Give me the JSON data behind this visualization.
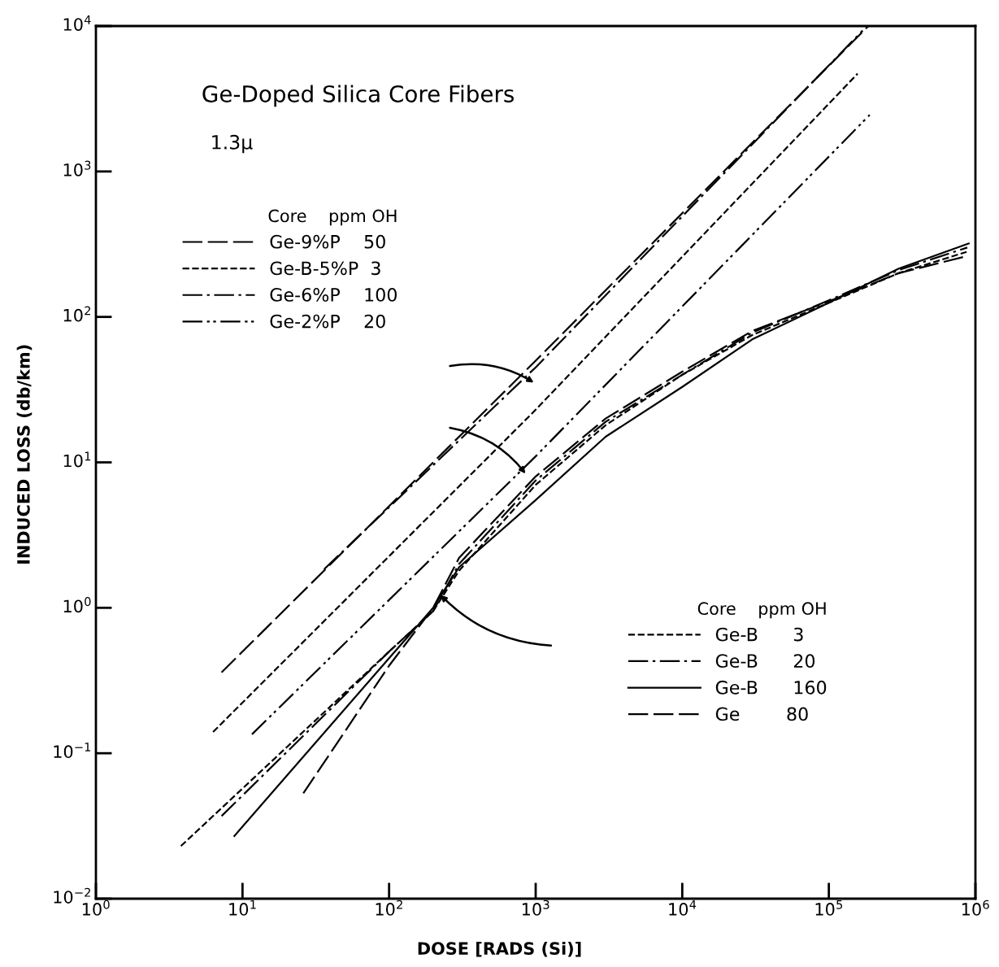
{
  "chart_data": {
    "type": "line",
    "title": "Ge-Doped Silica Core Fibers",
    "subtitle": "1.3μ",
    "xlabel": "DOSE [RADS (Si)]",
    "ylabel": "INDUCED LOSS (db/km)",
    "log": "xy",
    "grid": false,
    "legend": "left",
    "legend_title": "Core    ppm OH",
    "xlim": [
      1,
      1000000
    ],
    "ylim": [
      0.01,
      10000
    ],
    "xticks": [
      {
        "value": 1,
        "label": "10$^{0}$"
      },
      {
        "value": 10,
        "label": "10$^{1}$"
      },
      {
        "value": 100,
        "label": "10$^{2}$"
      },
      {
        "value": 1000,
        "label": "10$^{3}$"
      },
      {
        "value": 10000,
        "label": "10$^{4}$"
      },
      {
        "value": 100000,
        "label": "10$^{5}$"
      },
      {
        "value": 1000000,
        "label": "10$^{6}$"
      }
    ],
    "yticks": [
      {
        "value": 0.01,
        "label": "10$^{−2}$"
      },
      {
        "value": 0.1,
        "label": "10$^{−1}$"
      },
      {
        "value": 1,
        "label": "10$^{0}$"
      },
      {
        "value": 10,
        "label": "10$^{1}$"
      },
      {
        "value": 100,
        "label": "10$^{2}$"
      },
      {
        "value": 1000,
        "label": "10$^{3}$"
      },
      {
        "value": 10000,
        "label": "10$^{4}$"
      }
    ],
    "series": [
      {
        "name": "Ge-9%P    50",
        "color": "#000000",
        "line_style": "longdash",
        "x": [
          7.2,
          1000,
          186000
        ],
        "values": [
          0.36,
          50,
          10000
        ]
      },
      {
        "name": "Ge-B-5%P  3",
        "color": "#000000",
        "line_style": "dashed",
        "x": [
          6.3,
          1000,
          157000
        ],
        "values": [
          0.14,
          23,
          4700
        ]
      },
      {
        "name": "Ge-6%P    100",
        "color": "#000000",
        "line_style": "dashdot",
        "x": [
          36,
          1000,
          170000
        ],
        "values": [
          1.84,
          45,
          9300
        ]
      },
      {
        "name": "Ge-2%P    20",
        "color": "#000000",
        "line_style": "dashdotdot",
        "x": [
          11.6,
          1000,
          190000
        ],
        "values": [
          0.135,
          11,
          2450
        ]
      },
      {
        "name": "Ge-B      3",
        "color": "#000000",
        "line_style": "dashed",
        "x": [
          3.8,
          100,
          200,
          300,
          1000,
          3000,
          10000,
          30000,
          100000,
          300000,
          870000
        ],
        "values": [
          0.023,
          0.5,
          0.95,
          1.8,
          7,
          18,
          40,
          75,
          125,
          200,
          280
        ]
      },
      {
        "name": "Ge-B      20",
        "color": "#000000",
        "line_style": "dashdot",
        "x": [
          7.2,
          100,
          200,
          300,
          1000,
          3000,
          10000,
          30000,
          100000,
          300000,
          880000
        ],
        "values": [
          0.037,
          0.5,
          0.95,
          2.0,
          7.5,
          19,
          40,
          78,
          130,
          210,
          300
        ]
      },
      {
        "name": "Ge-B      160",
        "color": "#000000",
        "line_style": "solid",
        "x": [
          8.8,
          100,
          200,
          300,
          1000,
          3000,
          10000,
          30000,
          100000,
          300000,
          900000
        ],
        "values": [
          0.027,
          0.45,
          1.0,
          1.9,
          5.5,
          15,
          33,
          70,
          125,
          215,
          320
        ]
      },
      {
        "name": "Ge        80",
        "color": "#000000",
        "line_style": "longdash",
        "x": [
          26,
          100,
          200,
          300,
          1000,
          3000,
          10000,
          30000,
          100000,
          300000,
          850000
        ],
        "values": [
          0.053,
          0.4,
          1.0,
          2.2,
          8,
          20,
          42,
          80,
          128,
          200,
          260
        ]
      }
    ]
  }
}
